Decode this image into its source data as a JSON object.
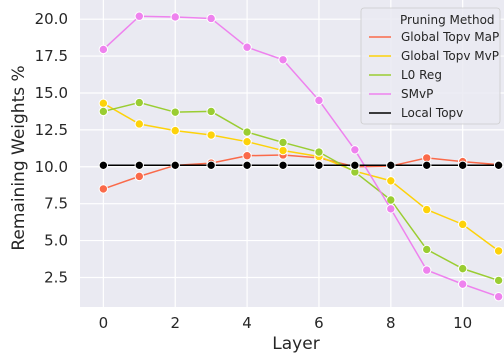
{
  "chart_data": {
    "type": "line",
    "xlabel": "Layer",
    "ylabel": "Remaining Weights %",
    "xlim": [
      -0.65,
      11.15
    ],
    "ylim": [
      0.5,
      21.3
    ],
    "x_ticks": [
      0,
      2,
      4,
      6,
      8,
      10
    ],
    "y_ticks": [
      2.5,
      5.0,
      7.5,
      10.0,
      12.5,
      15.0,
      17.5,
      20.0
    ],
    "grid": true,
    "legend_title": "Pruning Method",
    "legend_position": "top-right",
    "x": [
      0,
      1,
      2,
      3,
      4,
      5,
      6,
      7,
      8,
      9,
      10,
      11
    ],
    "series": [
      {
        "name": "Global Topv MaP",
        "color": "#fa6a4a",
        "values": [
          8.5,
          9.35,
          10.1,
          10.25,
          10.75,
          10.8,
          10.6,
          10.0,
          10.05,
          10.6,
          10.35,
          10.15
        ]
      },
      {
        "name": "Global Topv MvP",
        "color": "#fdd20a",
        "values": [
          14.3,
          12.9,
          12.45,
          12.15,
          11.7,
          11.1,
          10.7,
          9.7,
          9.05,
          7.1,
          6.1,
          4.3
        ]
      },
      {
        "name": "L0 Reg",
        "color": "#9acd32",
        "values": [
          13.75,
          14.35,
          13.7,
          13.75,
          12.35,
          11.65,
          11.0,
          9.65,
          7.75,
          4.4,
          3.1,
          2.3
        ]
      },
      {
        "name": "SMvP",
        "color": "#ee82ee",
        "values": [
          17.95,
          20.2,
          20.15,
          20.05,
          18.1,
          17.25,
          14.5,
          11.15,
          7.15,
          3.0,
          2.05,
          1.2
        ]
      },
      {
        "name": "Local Topv",
        "color": "#000000",
        "values": [
          10.1,
          10.1,
          10.1,
          10.1,
          10.1,
          10.1,
          10.1,
          10.1,
          10.1,
          10.1,
          10.1,
          10.1
        ]
      }
    ]
  }
}
